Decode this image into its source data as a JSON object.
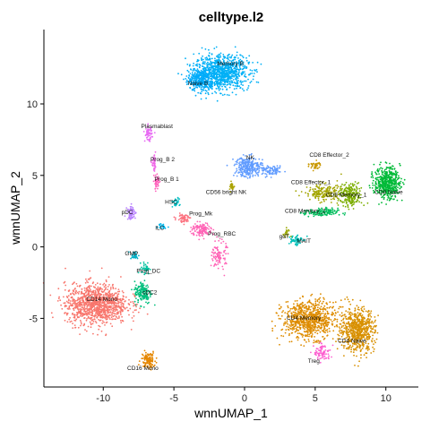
{
  "chart_data": {
    "type": "scatter",
    "title": "celltype.l2",
    "xlabel": "wnnUMAP_1",
    "ylabel": "wnnUMAP_2",
    "xlim": [
      -14.2,
      12.3
    ],
    "ylim": [
      -9.8,
      15.2
    ],
    "xticks": [
      {
        "value": -10,
        "label": "-10"
      },
      {
        "value": -5,
        "label": "-5"
      },
      {
        "value": 0,
        "label": "0"
      },
      {
        "value": 5,
        "label": "5"
      },
      {
        "value": 10,
        "label": "10"
      }
    ],
    "yticks": [
      {
        "value": -5,
        "label": "-5"
      },
      {
        "value": 0,
        "label": "0"
      },
      {
        "value": 5,
        "label": "5"
      },
      {
        "value": 10,
        "label": "10"
      }
    ],
    "grid": false,
    "legend": "none",
    "clusters": [
      {
        "label": "Memory B",
        "x": -1.0,
        "y": 12.7,
        "color": "#00b0f6",
        "blobs": [
          [
            -1.6,
            12.2,
            1.9,
            1.2,
            900
          ]
        ]
      },
      {
        "label": "Naive B",
        "x": -3.3,
        "y": 11.3,
        "color": "#00abfa",
        "blobs": [
          [
            -3.1,
            11.7,
            0.9,
            0.8,
            320
          ]
        ]
      },
      {
        "label": "Plasmablast",
        "x": -6.2,
        "y": 8.3,
        "color": "#e76bf3",
        "blobs": [
          [
            -6.8,
            7.9,
            0.25,
            0.5,
            60
          ]
        ]
      },
      {
        "label": "Prog_B 2",
        "x": -5.8,
        "y": 6.0,
        "color": "#f066e7",
        "blobs": [
          [
            -6.4,
            5.8,
            0.15,
            0.5,
            40
          ]
        ]
      },
      {
        "label": "Prog_B 1",
        "x": -5.5,
        "y": 4.6,
        "color": "#ff62bc",
        "blobs": [
          [
            -6.2,
            4.5,
            0.2,
            0.6,
            50
          ]
        ]
      },
      {
        "label": "NK",
        "x": 0.4,
        "y": 6.1,
        "color": "#619cff",
        "blobs": [
          [
            0.3,
            5.6,
            1.0,
            0.7,
            280
          ],
          [
            2.0,
            5.3,
            0.7,
            0.3,
            80
          ]
        ]
      },
      {
        "label": "CD56 bright NK",
        "x": -1.3,
        "y": 3.7,
        "color": "#aba300",
        "blobs": [
          [
            -0.9,
            4.2,
            0.2,
            0.3,
            30
          ]
        ]
      },
      {
        "label": "pDC",
        "x": -8.3,
        "y": 2.3,
        "color": "#b983ff",
        "blobs": [
          [
            -8.0,
            2.4,
            0.3,
            0.5,
            60
          ]
        ]
      },
      {
        "label": "HSC",
        "x": -5.2,
        "y": 3.0,
        "color": "#00bfc4",
        "blobs": [
          [
            -4.9,
            3.1,
            0.3,
            0.3,
            30
          ]
        ]
      },
      {
        "label": "Prog_Mk",
        "x": -3.1,
        "y": 2.2,
        "color": "#fc717f",
        "blobs": [
          [
            -4.3,
            2.0,
            0.5,
            0.3,
            60
          ]
        ]
      },
      {
        "label": "ILC",
        "x": -6.0,
        "y": 1.2,
        "color": "#00b6eb",
        "blobs": [
          [
            -5.8,
            1.5,
            0.3,
            0.2,
            20
          ]
        ]
      },
      {
        "label": "MAIT",
        "x": 4.2,
        "y": 0.3,
        "color": "#00c0b8",
        "blobs": [
          [
            3.6,
            0.5,
            0.5,
            0.4,
            60
          ]
        ]
      },
      {
        "label": "Prog_RBC",
        "x": -1.6,
        "y": 0.8,
        "color": "#ff63b6",
        "blobs": [
          [
            -3.1,
            1.2,
            0.7,
            0.5,
            120
          ],
          [
            -1.8,
            -0.6,
            0.5,
            1.0,
            100
          ]
        ]
      },
      {
        "label": "gdT",
        "x": 2.8,
        "y": 0.6,
        "color": "#9aa800",
        "blobs": [
          [
            3.0,
            1.0,
            0.3,
            0.3,
            20
          ]
        ]
      },
      {
        "label": "CD8 Effector_2",
        "x": 6.0,
        "y": 6.3,
        "color": "#c99800",
        "blobs": [
          [
            5.0,
            5.7,
            0.4,
            0.3,
            40
          ]
        ]
      },
      {
        "label": "CD8 Effector_1",
        "x": 4.7,
        "y": 4.4,
        "color": "#a3a500",
        "blobs": [
          [
            5.6,
            3.8,
            1.3,
            0.6,
            180
          ]
        ]
      },
      {
        "label": "CD8 Naive",
        "x": 10.2,
        "y": 3.7,
        "color": "#00ba38",
        "blobs": [
          [
            10.1,
            4.5,
            0.9,
            1.1,
            500
          ]
        ]
      },
      {
        "label": "CD8 Memory_1",
        "x": 7.2,
        "y": 3.5,
        "color": "#7cae00",
        "blobs": [
          [
            7.5,
            3.6,
            0.8,
            0.8,
            220
          ]
        ]
      },
      {
        "label": "CD8 Memory_2",
        "x": 4.3,
        "y": 2.4,
        "color": "#00bd5c",
        "blobs": [
          [
            5.4,
            2.4,
            1.2,
            0.3,
            140
          ]
        ]
      },
      {
        "label": "GMP",
        "x": -8.0,
        "y": -0.6,
        "color": "#00b0c6",
        "blobs": [
          [
            -7.8,
            -0.6,
            0.3,
            0.3,
            30
          ]
        ]
      },
      {
        "label": "Prog_DC",
        "x": -6.8,
        "y": -1.8,
        "color": "#00c19f",
        "blobs": [
          [
            -7.0,
            -1.5,
            0.3,
            0.4,
            40
          ]
        ]
      },
      {
        "label": "cDC2",
        "x": -6.7,
        "y": -3.3,
        "color": "#00bf7d",
        "blobs": [
          [
            -7.2,
            -3.2,
            0.6,
            0.8,
            160
          ]
        ]
      },
      {
        "label": "CD14 Mono",
        "x": -10.1,
        "y": -3.8,
        "color": "#f8766d",
        "blobs": [
          [
            -10.5,
            -4.0,
            2.2,
            1.4,
            1100
          ]
        ]
      },
      {
        "label": "CD16 Mono",
        "x": -7.2,
        "y": -8.6,
        "color": "#e58700",
        "blobs": [
          [
            -6.8,
            -7.9,
            0.5,
            0.6,
            120
          ]
        ]
      },
      {
        "label": "CD4 Memory",
        "x": 4.2,
        "y": -5.1,
        "color": "#de8c00",
        "blobs": [
          [
            4.6,
            -5.1,
            1.9,
            1.3,
            800
          ]
        ]
      },
      {
        "label": "CD4 Naive",
        "x": 7.6,
        "y": -6.7,
        "color": "#d89000",
        "blobs": [
          [
            8.0,
            -5.8,
            1.2,
            1.5,
            650
          ]
        ]
      },
      {
        "label": "Treg",
        "x": 4.9,
        "y": -8.1,
        "color": "#fd61d1",
        "blobs": [
          [
            5.5,
            -7.4,
            0.6,
            0.6,
            90
          ]
        ]
      }
    ]
  }
}
